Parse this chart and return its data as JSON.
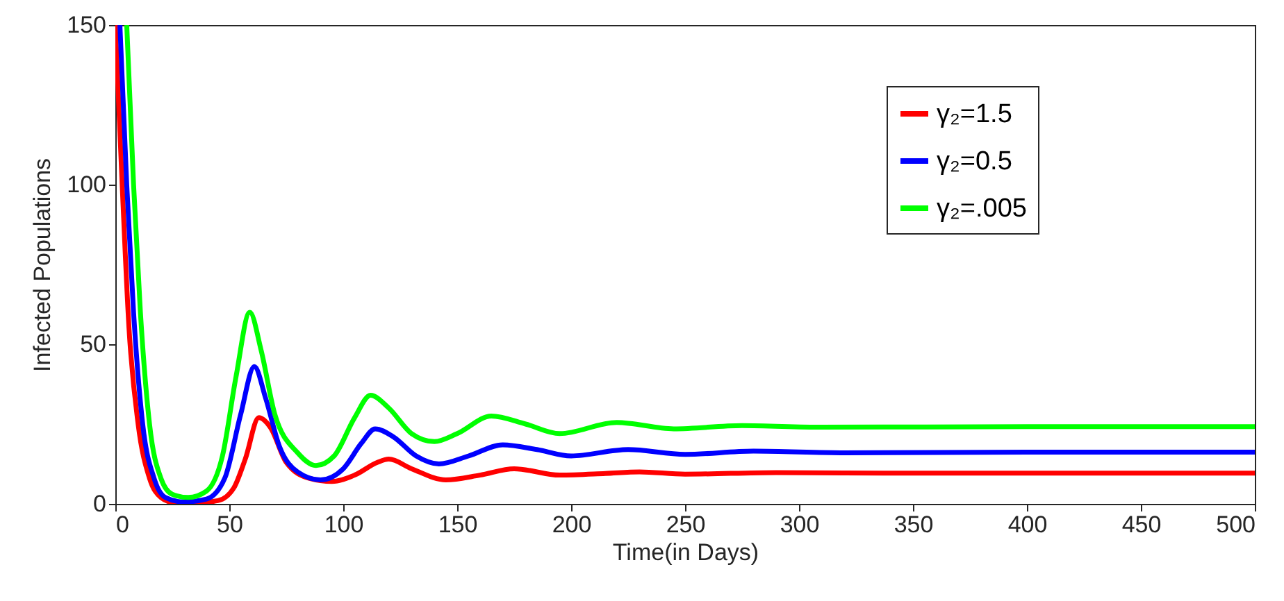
{
  "chart_data": {
    "type": "line",
    "xlabel": "Time(in Days)",
    "ylabel": "Infected Populations",
    "xlim": [
      0,
      500
    ],
    "ylim": [
      0,
      150
    ],
    "xticks": [
      0,
      50,
      100,
      150,
      200,
      250,
      300,
      350,
      400,
      450,
      500
    ],
    "yticks": [
      0,
      50,
      100,
      150
    ],
    "legend": "top right",
    "line_style": "solid",
    "series": [
      {
        "name": "γ₂=1.5",
        "color": "#ff0000",
        "x": [
          0,
          3,
          6,
          10,
          15,
          20,
          25,
          35,
          45,
          52,
          57,
          63,
          68,
          75,
          85,
          95,
          105,
          115,
          120,
          130,
          145,
          160,
          175,
          195,
          215,
          230,
          250,
          290,
          350,
          400,
          500
        ],
        "values": [
          150,
          100,
          55,
          25,
          8,
          2,
          0.5,
          0.3,
          1,
          5,
          14,
          27,
          24,
          13,
          8,
          7,
          9,
          13,
          14,
          11,
          7.5,
          9,
          11,
          9,
          9.5,
          10,
          9.3,
          9.8,
          9.6,
          9.6,
          9.6
        ]
      },
      {
        "name": "γ₂=0.5",
        "color": "#0000ff",
        "x": [
          2,
          5,
          8,
          12,
          17,
          22,
          30,
          40,
          48,
          55,
          61,
          66,
          72,
          80,
          90,
          100,
          108,
          114,
          122,
          132,
          142,
          155,
          170,
          185,
          200,
          225,
          250,
          280,
          320,
          400,
          500
        ],
        "values": [
          150,
          100,
          60,
          25,
          8,
          2,
          0.6,
          1.5,
          8,
          28,
          43,
          33,
          18,
          10,
          7.5,
          11,
          19,
          23.5,
          21,
          15,
          12.5,
          15,
          18.5,
          17,
          15,
          17,
          15.5,
          16.5,
          16,
          16.2,
          16.2
        ]
      },
      {
        "name": "γ₂=.005",
        "color": "#00ff00",
        "x": [
          5,
          8,
          11,
          15,
          20,
          25,
          32,
          40,
          47,
          53,
          59,
          64,
          70,
          80,
          88,
          96,
          105,
          112,
          120,
          130,
          140,
          150,
          165,
          180,
          195,
          220,
          245,
          275,
          310,
          400,
          500
        ],
        "values": [
          150,
          100,
          60,
          25,
          8,
          3,
          2,
          4,
          15,
          40,
          60,
          48,
          28,
          16,
          12,
          15,
          27,
          34,
          30,
          22,
          19.5,
          22,
          27.5,
          25,
          22,
          25.5,
          23.5,
          24.5,
          24,
          24.2,
          24.2
        ]
      }
    ]
  }
}
